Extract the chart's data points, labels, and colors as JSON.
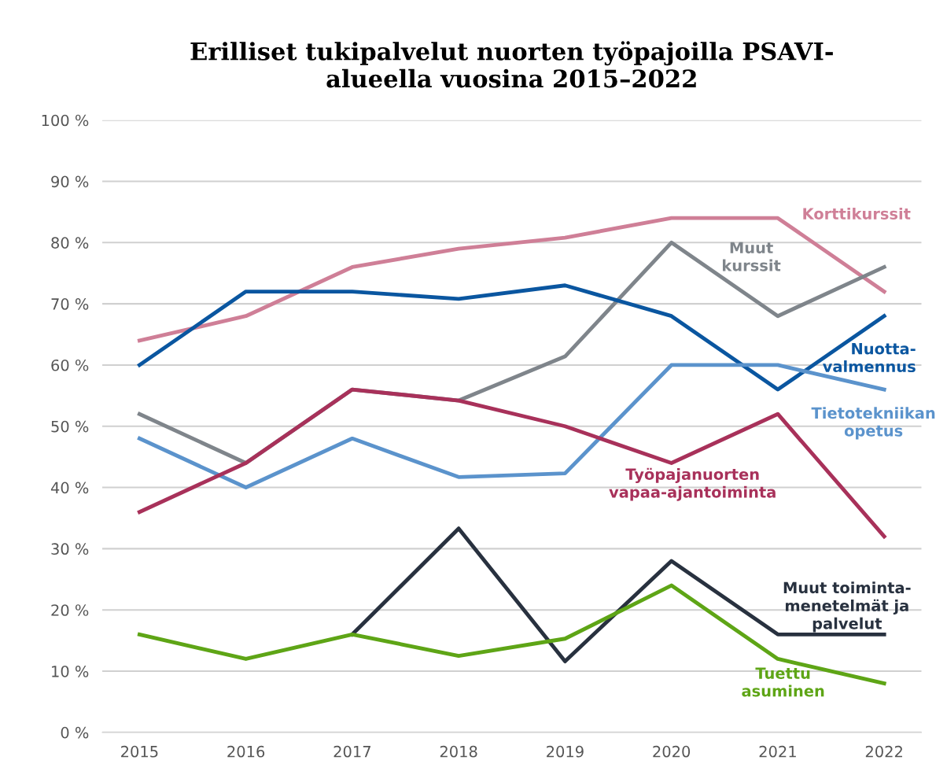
{
  "chart_data": {
    "type": "line",
    "title": "Erilliset tukipalvelut nuorten työpajoilla PSAVI-\nalueella vuosina 2015–2022",
    "categories": [
      "2015",
      "2016",
      "2017",
      "2018",
      "2019",
      "2020",
      "2021",
      "2022"
    ],
    "series": [
      {
        "name": "Korttikurssit",
        "color": "#cf7f97",
        "values": [
          64,
          68,
          76,
          79,
          80.8,
          84,
          84,
          72
        ]
      },
      {
        "name": "Muut\nkurssit",
        "color": "#7f858b",
        "values": [
          52,
          44,
          56,
          54.2,
          61.4,
          80,
          68,
          76
        ]
      },
      {
        "name": "Nuotta-\nvalmennus",
        "color": "#0a56a0",
        "values": [
          60,
          72,
          72,
          70.8,
          73,
          68,
          56,
          68
        ]
      },
      {
        "name": "Tietotekniikan\nopetus",
        "color": "#5b93cc",
        "values": [
          48,
          40,
          48,
          41.7,
          42.3,
          60,
          60,
          56
        ]
      },
      {
        "name": "Työpajanuorten\nvapaa-ajantoiminta",
        "color": "#a8315a",
        "values": [
          36,
          44,
          56,
          54.2,
          50,
          44,
          52,
          32
        ]
      },
      {
        "name": "Muut toiminta-\nmenetelmät ja\npalvelut",
        "color": "#28313f",
        "values": [
          null,
          null,
          16,
          33.3,
          11.6,
          28,
          16,
          16
        ]
      },
      {
        "name": "Tuettu\nasuminen",
        "color": "#5ea516",
        "values": [
          16,
          12,
          16,
          12.5,
          15.3,
          24,
          12,
          8
        ]
      }
    ],
    "ylim": [
      0,
      100
    ],
    "yticks": [
      {
        "value": 0,
        "label": "0 %"
      },
      {
        "value": 10,
        "label": "10 %"
      },
      {
        "value": 20,
        "label": "20 %"
      },
      {
        "value": 30,
        "label": "30 %"
      },
      {
        "value": 40,
        "label": "40 %"
      },
      {
        "value": 50,
        "label": "50 %"
      },
      {
        "value": 60,
        "label": "60 %"
      },
      {
        "value": 70,
        "label": "70 %"
      },
      {
        "value": 80,
        "label": "80 %"
      },
      {
        "value": 90,
        "label": "90 %"
      },
      {
        "value": 100,
        "label": "100 %"
      }
    ],
    "grid": "y",
    "line_style": "solid",
    "marker": "none"
  }
}
